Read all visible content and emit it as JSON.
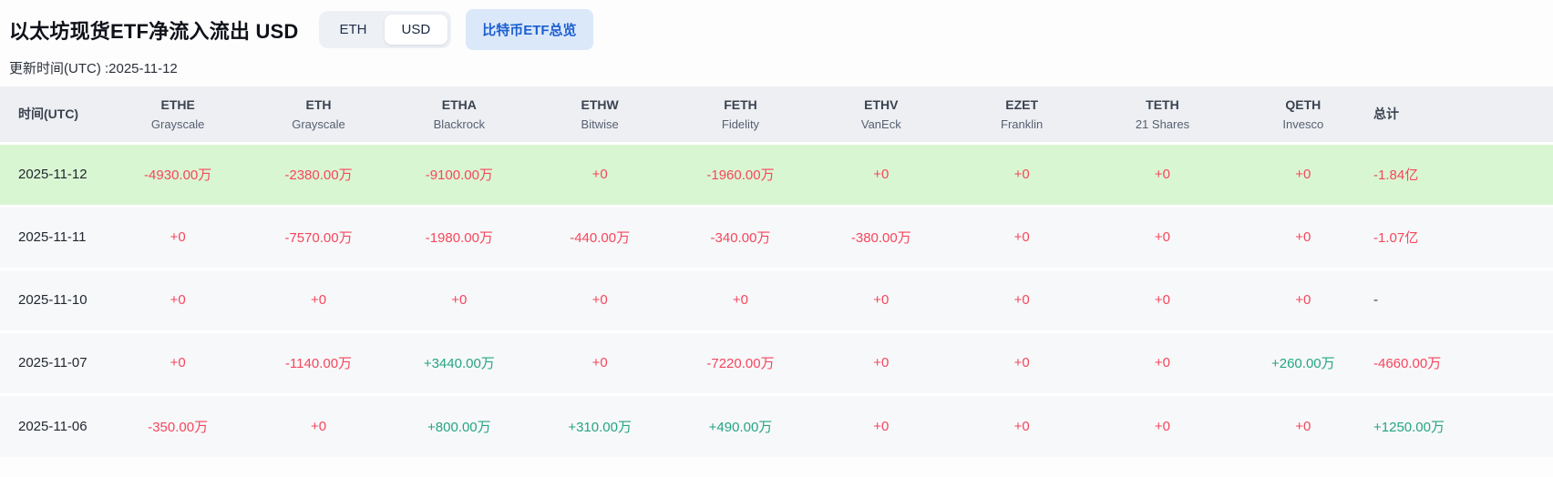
{
  "header": {
    "title": "以太坊现货ETF净流入流出 USD",
    "toggle": {
      "options": [
        "ETH",
        "USD"
      ],
      "selected": "USD"
    },
    "overview_button": "比特币ETF总览",
    "update_time": "更新时间(UTC) :2025-11-12"
  },
  "colors": {
    "negative": "#f6465d",
    "positive": "#24a584",
    "highlight_row": "#d9f6d2",
    "header_bg": "#edeff3",
    "row_bg": "#f7f8f9",
    "button_bg": "#dbe8fa",
    "button_fg": "#1b5fd0"
  },
  "table": {
    "columns": [
      {
        "ticker": "时间(UTC)",
        "company": ""
      },
      {
        "ticker": "ETHE",
        "company": "Grayscale"
      },
      {
        "ticker": "ETH",
        "company": "Grayscale"
      },
      {
        "ticker": "ETHA",
        "company": "Blackrock"
      },
      {
        "ticker": "ETHW",
        "company": "Bitwise"
      },
      {
        "ticker": "FETH",
        "company": "Fidelity"
      },
      {
        "ticker": "ETHV",
        "company": "VanEck"
      },
      {
        "ticker": "EZET",
        "company": "Franklin"
      },
      {
        "ticker": "TETH",
        "company": "21 Shares"
      },
      {
        "ticker": "QETH",
        "company": "Invesco"
      },
      {
        "ticker": "总计",
        "company": ""
      }
    ],
    "rows": [
      {
        "date": "2025-11-12",
        "highlighted": true,
        "cells": [
          {
            "v": "-4930.00万",
            "c": "down"
          },
          {
            "v": "-2380.00万",
            "c": "down"
          },
          {
            "v": "-9100.00万",
            "c": "down"
          },
          {
            "v": "+0",
            "c": "down"
          },
          {
            "v": "-1960.00万",
            "c": "down"
          },
          {
            "v": "+0",
            "c": "down"
          },
          {
            "v": "+0",
            "c": "down"
          },
          {
            "v": "+0",
            "c": "down"
          },
          {
            "v": "+0",
            "c": "down"
          },
          {
            "v": "-1.84亿",
            "c": "down"
          }
        ]
      },
      {
        "date": "2025-11-11",
        "highlighted": false,
        "cells": [
          {
            "v": "+0",
            "c": "down"
          },
          {
            "v": "-7570.00万",
            "c": "down"
          },
          {
            "v": "-1980.00万",
            "c": "down"
          },
          {
            "v": "-440.00万",
            "c": "down"
          },
          {
            "v": "-340.00万",
            "c": "down"
          },
          {
            "v": "-380.00万",
            "c": "down"
          },
          {
            "v": "+0",
            "c": "down"
          },
          {
            "v": "+0",
            "c": "down"
          },
          {
            "v": "+0",
            "c": "down"
          },
          {
            "v": "-1.07亿",
            "c": "down"
          }
        ]
      },
      {
        "date": "2025-11-10",
        "highlighted": false,
        "cells": [
          {
            "v": "+0",
            "c": "down"
          },
          {
            "v": "+0",
            "c": "down"
          },
          {
            "v": "+0",
            "c": "down"
          },
          {
            "v": "+0",
            "c": "down"
          },
          {
            "v": "+0",
            "c": "down"
          },
          {
            "v": "+0",
            "c": "down"
          },
          {
            "v": "+0",
            "c": "down"
          },
          {
            "v": "+0",
            "c": "down"
          },
          {
            "v": "+0",
            "c": "down"
          },
          {
            "v": "-",
            "c": "flat"
          }
        ]
      },
      {
        "date": "2025-11-07",
        "highlighted": false,
        "cells": [
          {
            "v": "+0",
            "c": "down"
          },
          {
            "v": "-1140.00万",
            "c": "down"
          },
          {
            "v": "+3440.00万",
            "c": "up"
          },
          {
            "v": "+0",
            "c": "down"
          },
          {
            "v": "-7220.00万",
            "c": "down"
          },
          {
            "v": "+0",
            "c": "down"
          },
          {
            "v": "+0",
            "c": "down"
          },
          {
            "v": "+0",
            "c": "down"
          },
          {
            "v": "+260.00万",
            "c": "up"
          },
          {
            "v": "-4660.00万",
            "c": "down"
          }
        ]
      },
      {
        "date": "2025-11-06",
        "highlighted": false,
        "cells": [
          {
            "v": "-350.00万",
            "c": "down"
          },
          {
            "v": "+0",
            "c": "down"
          },
          {
            "v": "+800.00万",
            "c": "up"
          },
          {
            "v": "+310.00万",
            "c": "up"
          },
          {
            "v": "+490.00万",
            "c": "up"
          },
          {
            "v": "+0",
            "c": "down"
          },
          {
            "v": "+0",
            "c": "down"
          },
          {
            "v": "+0",
            "c": "down"
          },
          {
            "v": "+0",
            "c": "down"
          },
          {
            "v": "+1250.00万",
            "c": "up"
          }
        ]
      }
    ]
  }
}
